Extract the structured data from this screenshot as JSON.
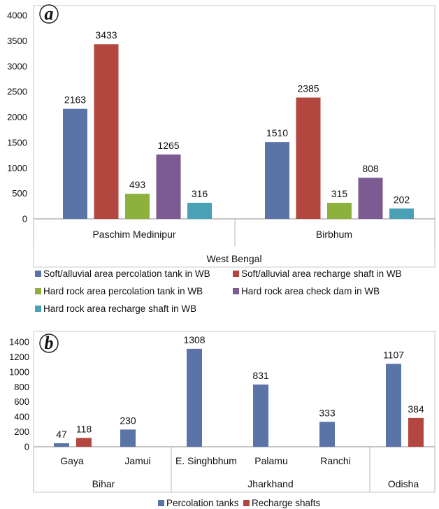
{
  "chart_data": [
    {
      "type": "bar",
      "panel_label": "a",
      "group_label": "West Bengal",
      "categories": [
        "Paschim Medinipur",
        "Birbhum"
      ],
      "ylim": [
        0,
        4000
      ],
      "yticks": [
        "0",
        "500",
        "1000",
        "1500",
        "2000",
        "2500",
        "3000",
        "3500",
        "4000"
      ],
      "grid": false,
      "legend_position": "bottom",
      "series": [
        {
          "name": "Soft/alluvial area  percolation tank in WB",
          "color": "#5b74a8",
          "values": [
            2163,
            1510
          ]
        },
        {
          "name": "Soft/alluvial area recharge shaft in WB",
          "color": "#b3473f",
          "values": [
            3433,
            2385
          ]
        },
        {
          "name": "Hard rock area percolation tank in WB",
          "color": "#8db13c",
          "values": [
            493,
            315
          ]
        },
        {
          "name": "Hard rock area check  dam in WB",
          "color": "#7c5a92",
          "values": [
            1265,
            808
          ]
        },
        {
          "name": "Hard rock area recharge  shaft in WB",
          "color": "#4aa1b6",
          "values": [
            316,
            202
          ]
        }
      ]
    },
    {
      "type": "bar",
      "panel_label": "b",
      "categories": [
        "Gaya",
        "Jamui",
        "E. Singhbhum",
        "Palamu",
        "Ranchi",
        ""
      ],
      "groups": [
        {
          "name": "Bihar",
          "start": 0,
          "end": 1
        },
        {
          "name": "Jharkhand",
          "start": 2,
          "end": 4
        },
        {
          "name": "Odisha",
          "start": 5,
          "end": 5
        }
      ],
      "ylim": [
        0,
        1400
      ],
      "yticks": [
        "0",
        "200",
        "400",
        "600",
        "800",
        "1000",
        "1200",
        "1400"
      ],
      "grid": false,
      "legend_position": "bottom",
      "series": [
        {
          "name": "Percolation tanks",
          "color": "#5b74a8",
          "values": [
            47,
            230,
            1308,
            831,
            333,
            1107
          ]
        },
        {
          "name": "Recharge shafts",
          "color": "#b3473f",
          "values": [
            118,
            null,
            null,
            null,
            null,
            384
          ]
        }
      ]
    }
  ]
}
